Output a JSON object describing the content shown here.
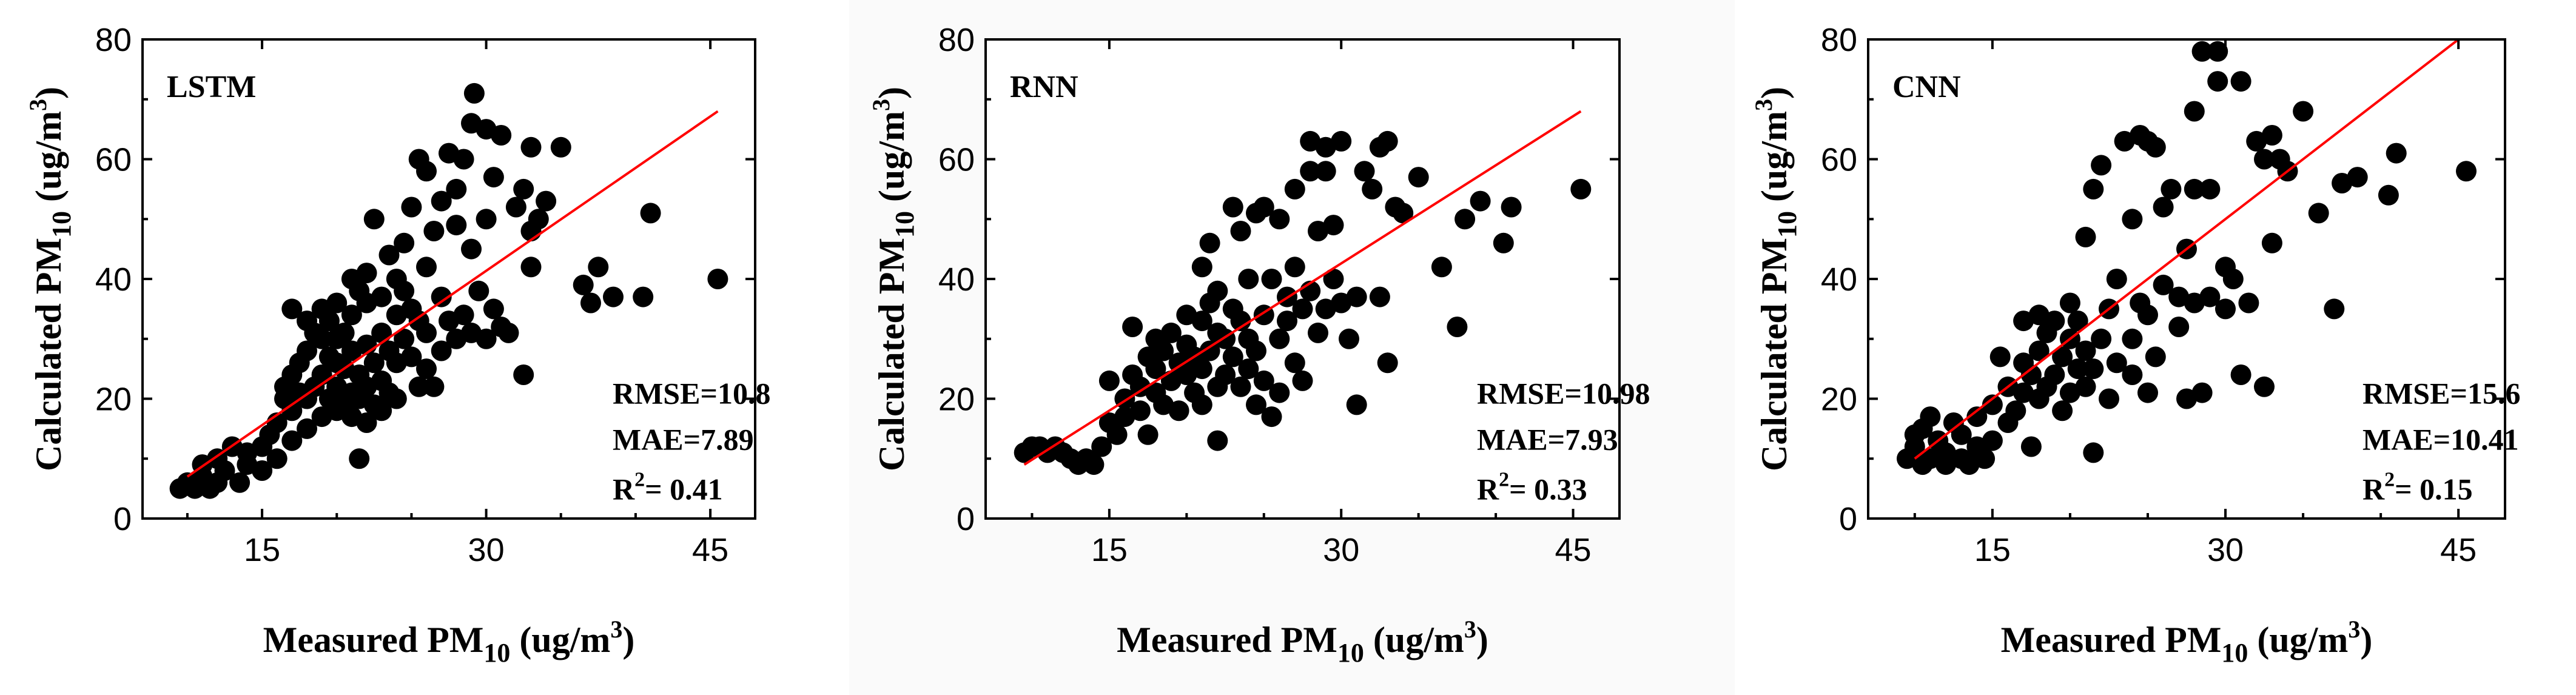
{
  "figure": {
    "xlabel_main": "Measured PM",
    "xlabel_sub": "10",
    "xlabel_unit_open": " (ug/m",
    "xlabel_unit_sup": "3",
    "xlabel_unit_close": ")",
    "ylabel_main": "Calculated PM",
    "ylabel_sub": "10",
    "ylabel_unit_open": " (ug/m",
    "ylabel_unit_sup": "3",
    "ylabel_unit_close": ")",
    "point_color": "#000000",
    "fit_color": "#ff0000"
  },
  "chart_data": [
    {
      "type": "scatter",
      "title": "LSTM",
      "xlim": [
        7,
        48
      ],
      "ylim": [
        0,
        80
      ],
      "xticks": [
        "15",
        "30",
        "45"
      ],
      "xtick_values": [
        15,
        30,
        45
      ],
      "yticks": [
        "0",
        "20",
        "40",
        "60",
        "80"
      ],
      "ytick_values": [
        0,
        20,
        40,
        60,
        80
      ],
      "fit_line": {
        "x": [
          10,
          45.5
        ],
        "y": [
          7,
          68
        ]
      },
      "stats": {
        "rmse": "RMSE=10.8",
        "mae": "MAE=7.89",
        "r2_prefix": "R",
        "r2_sup": "2",
        "r2_value": "= 0.41"
      },
      "points": [
        [
          9.5,
          5
        ],
        [
          10,
          6
        ],
        [
          10.5,
          5
        ],
        [
          11,
          7
        ],
        [
          11,
          9
        ],
        [
          11.5,
          5
        ],
        [
          12,
          6
        ],
        [
          12,
          10
        ],
        [
          12.5,
          8
        ],
        [
          13,
          12
        ],
        [
          13.5,
          6
        ],
        [
          14,
          9
        ],
        [
          14,
          11
        ],
        [
          15,
          8
        ],
        [
          15,
          12
        ],
        [
          15.5,
          14
        ],
        [
          16,
          10
        ],
        [
          16,
          16
        ],
        [
          16.5,
          20
        ],
        [
          16.5,
          22
        ],
        [
          17,
          13
        ],
        [
          17,
          18
        ],
        [
          17,
          24
        ],
        [
          17,
          35
        ],
        [
          17.5,
          26
        ],
        [
          17.5,
          21
        ],
        [
          18,
          15
        ],
        [
          18,
          20
        ],
        [
          18,
          28
        ],
        [
          18,
          33
        ],
        [
          18.5,
          22
        ],
        [
          18.5,
          31
        ],
        [
          19,
          17
        ],
        [
          19,
          24
        ],
        [
          19,
          30
        ],
        [
          19,
          35
        ],
        [
          19.5,
          20
        ],
        [
          19.5,
          27
        ],
        [
          19.5,
          33
        ],
        [
          20,
          18
        ],
        [
          20,
          22
        ],
        [
          20,
          26
        ],
        [
          20,
          30
        ],
        [
          20,
          36
        ],
        [
          20.5,
          19
        ],
        [
          20.5,
          25
        ],
        [
          20.5,
          31
        ],
        [
          21,
          17
        ],
        [
          21,
          21
        ],
        [
          21,
          28
        ],
        [
          21,
          34
        ],
        [
          21,
          40
        ],
        [
          21.5,
          10
        ],
        [
          21.5,
          20
        ],
        [
          21.5,
          24
        ],
        [
          21.5,
          38
        ],
        [
          22,
          16
        ],
        [
          22,
          22
        ],
        [
          22,
          29
        ],
        [
          22,
          36
        ],
        [
          22,
          41
        ],
        [
          22.5,
          19
        ],
        [
          22.5,
          26
        ],
        [
          22.5,
          50
        ],
        [
          23,
          18
        ],
        [
          23,
          23
        ],
        [
          23,
          31
        ],
        [
          23,
          37
        ],
        [
          23.5,
          21
        ],
        [
          23.5,
          28
        ],
        [
          23.5,
          44
        ],
        [
          24,
          20
        ],
        [
          24,
          26
        ],
        [
          24,
          34
        ],
        [
          24,
          40
        ],
        [
          24.5,
          30
        ],
        [
          24.5,
          38
        ],
        [
          24.5,
          46
        ],
        [
          25,
          27
        ],
        [
          25,
          35
        ],
        [
          25,
          52
        ],
        [
          25.5,
          22
        ],
        [
          25.5,
          33
        ],
        [
          25.5,
          60
        ],
        [
          26,
          25
        ],
        [
          26,
          31
        ],
        [
          26,
          42
        ],
        [
          26,
          58
        ],
        [
          26.5,
          22
        ],
        [
          26.5,
          48
        ],
        [
          27,
          28
        ],
        [
          27,
          37
        ],
        [
          27,
          53
        ],
        [
          27.5,
          33
        ],
        [
          27.5,
          61
        ],
        [
          28,
          30
        ],
        [
          28,
          49
        ],
        [
          28,
          55
        ],
        [
          28.5,
          34
        ],
        [
          28.5,
          60
        ],
        [
          29,
          31
        ],
        [
          29,
          45
        ],
        [
          29,
          66
        ],
        [
          29.2,
          71
        ],
        [
          29.5,
          38
        ],
        [
          30,
          30
        ],
        [
          30,
          50
        ],
        [
          30,
          65
        ],
        [
          30.5,
          35
        ],
        [
          30.5,
          57
        ],
        [
          31,
          32
        ],
        [
          31,
          64
        ],
        [
          31.5,
          31
        ],
        [
          32,
          52
        ],
        [
          32.5,
          55
        ],
        [
          32.5,
          24
        ],
        [
          33,
          42
        ],
        [
          33,
          48
        ],
        [
          33,
          62
        ],
        [
          33.5,
          50
        ],
        [
          34,
          53
        ],
        [
          35,
          62
        ],
        [
          36.5,
          39
        ],
        [
          37,
          36
        ],
        [
          37.5,
          42
        ],
        [
          38.5,
          37
        ],
        [
          40.5,
          37
        ],
        [
          41,
          51
        ],
        [
          45.5,
          40
        ]
      ]
    },
    {
      "type": "scatter",
      "title": "RNN",
      "xlim": [
        7,
        48
      ],
      "ylim": [
        0,
        80
      ],
      "xticks": [
        "15",
        "30",
        "45"
      ],
      "xtick_values": [
        15,
        30,
        45
      ],
      "yticks": [
        "0",
        "20",
        "40",
        "60",
        "80"
      ],
      "ytick_values": [
        0,
        20,
        40,
        60,
        80
      ],
      "fit_line": {
        "x": [
          9.5,
          45.5
        ],
        "y": [
          9,
          68
        ]
      },
      "stats": {
        "rmse": "RMSE=10.98",
        "mae": "MAE=7.93",
        "r2_prefix": "R",
        "r2_sup": "2",
        "r2_value": "= 0.33"
      },
      "points": [
        [
          9.5,
          11
        ],
        [
          10,
          12
        ],
        [
          10.5,
          12
        ],
        [
          11,
          11
        ],
        [
          11.5,
          12
        ],
        [
          12,
          11
        ],
        [
          12.5,
          10
        ],
        [
          13,
          9
        ],
        [
          13.5,
          10
        ],
        [
          14,
          9
        ],
        [
          14.5,
          12
        ],
        [
          15,
          16
        ],
        [
          15,
          23
        ],
        [
          15.5,
          14
        ],
        [
          16,
          20
        ],
        [
          16,
          17
        ],
        [
          16.5,
          24
        ],
        [
          16.5,
          32
        ],
        [
          17,
          18
        ],
        [
          17,
          22
        ],
        [
          17.5,
          27
        ],
        [
          17.5,
          14
        ],
        [
          18,
          21
        ],
        [
          18,
          25
        ],
        [
          18,
          30
        ],
        [
          18.5,
          19
        ],
        [
          18.5,
          28
        ],
        [
          19,
          23
        ],
        [
          19,
          31
        ],
        [
          19.5,
          18
        ],
        [
          19.5,
          26
        ],
        [
          20,
          24
        ],
        [
          20,
          29
        ],
        [
          20,
          34
        ],
        [
          20.5,
          21
        ],
        [
          20.5,
          27
        ],
        [
          21,
          19
        ],
        [
          21,
          25
        ],
        [
          21,
          33
        ],
        [
          21,
          42
        ],
        [
          21.5,
          28
        ],
        [
          21.5,
          36
        ],
        [
          21.5,
          46
        ],
        [
          22,
          13
        ],
        [
          22,
          22
        ],
        [
          22,
          31
        ],
        [
          22,
          38
        ],
        [
          22.5,
          24
        ],
        [
          22.5,
          30
        ],
        [
          23,
          27
        ],
        [
          23,
          35
        ],
        [
          23,
          52
        ],
        [
          23.5,
          22
        ],
        [
          23.5,
          33
        ],
        [
          23.5,
          48
        ],
        [
          24,
          25
        ],
        [
          24,
          30
        ],
        [
          24,
          40
        ],
        [
          24.5,
          19
        ],
        [
          24.5,
          28
        ],
        [
          24.5,
          51
        ],
        [
          25,
          23
        ],
        [
          25,
          34
        ],
        [
          25,
          52
        ],
        [
          25.5,
          17
        ],
        [
          25.5,
          40
        ],
        [
          26,
          21
        ],
        [
          26,
          30
        ],
        [
          26,
          50
        ],
        [
          26.5,
          33
        ],
        [
          26.5,
          37
        ],
        [
          27,
          26
        ],
        [
          27,
          42
        ],
        [
          27,
          55
        ],
        [
          27.5,
          35
        ],
        [
          27.5,
          23
        ],
        [
          28,
          38
        ],
        [
          28,
          58
        ],
        [
          28,
          63
        ],
        [
          28.5,
          31
        ],
        [
          28.5,
          48
        ],
        [
          29,
          35
        ],
        [
          29,
          58
        ],
        [
          29,
          62
        ],
        [
          29.5,
          40
        ],
        [
          29.5,
          49
        ],
        [
          30,
          63
        ],
        [
          30,
          36
        ],
        [
          30.5,
          30
        ],
        [
          31,
          19
        ],
        [
          31,
          37
        ],
        [
          31.5,
          58
        ],
        [
          32,
          55
        ],
        [
          32.5,
          37
        ],
        [
          32.5,
          62
        ],
        [
          33,
          26
        ],
        [
          33,
          63
        ],
        [
          33.5,
          52
        ],
        [
          34,
          51
        ],
        [
          35,
          57
        ],
        [
          36.5,
          42
        ],
        [
          37.5,
          32
        ],
        [
          38,
          50
        ],
        [
          39,
          53
        ],
        [
          40.5,
          46
        ],
        [
          41,
          52
        ],
        [
          45.5,
          55
        ]
      ]
    },
    {
      "type": "scatter",
      "title": "CNN",
      "xlim": [
        7,
        48
      ],
      "ylim": [
        0,
        80
      ],
      "xticks": [
        "15",
        "30",
        "45"
      ],
      "xtick_values": [
        15,
        30,
        45
      ],
      "yticks": [
        "0",
        "20",
        "40",
        "60",
        "80"
      ],
      "ytick_values": [
        0,
        20,
        40,
        60,
        80
      ],
      "fit_line": {
        "x": [
          10,
          45
        ],
        "y": [
          10,
          80
        ]
      },
      "stats": {
        "rmse": "RMSE=15.6",
        "mae": "MAE=10.41",
        "r2_prefix": "R",
        "r2_sup": "2",
        "r2_value": "= 0.15"
      },
      "points": [
        [
          9.5,
          10
        ],
        [
          10,
          14
        ],
        [
          10,
          12
        ],
        [
          10.5,
          9
        ],
        [
          10.5,
          15
        ],
        [
          11,
          10
        ],
        [
          11,
          17
        ],
        [
          11.5,
          13
        ],
        [
          12,
          9
        ],
        [
          12,
          11
        ],
        [
          12.5,
          16
        ],
        [
          13,
          10
        ],
        [
          13,
          14
        ],
        [
          13.5,
          9
        ],
        [
          14,
          12
        ],
        [
          14,
          17
        ],
        [
          14.5,
          10
        ],
        [
          15,
          13
        ],
        [
          15,
          19
        ],
        [
          15.5,
          27
        ],
        [
          16,
          16
        ],
        [
          16,
          22
        ],
        [
          16.5,
          18
        ],
        [
          17,
          21
        ],
        [
          17,
          26
        ],
        [
          17,
          33
        ],
        [
          17.5,
          12
        ],
        [
          17.5,
          24
        ],
        [
          18,
          20
        ],
        [
          18,
          28
        ],
        [
          18,
          34
        ],
        [
          18.5,
          22
        ],
        [
          18.5,
          31
        ],
        [
          19,
          24
        ],
        [
          19,
          33
        ],
        [
          19.5,
          18
        ],
        [
          19.5,
          27
        ],
        [
          20,
          21
        ],
        [
          20,
          30
        ],
        [
          20,
          36
        ],
        [
          20.5,
          25
        ],
        [
          20.5,
          33
        ],
        [
          21,
          22
        ],
        [
          21,
          28
        ],
        [
          21,
          47
        ],
        [
          21.5,
          11
        ],
        [
          21.5,
          25
        ],
        [
          21.5,
          55
        ],
        [
          22,
          30
        ],
        [
          22,
          59
        ],
        [
          22.5,
          20
        ],
        [
          22.5,
          35
        ],
        [
          23,
          26
        ],
        [
          23,
          40
        ],
        [
          23.5,
          63
        ],
        [
          24,
          24
        ],
        [
          24,
          30
        ],
        [
          24,
          50
        ],
        [
          24.5,
          36
        ],
        [
          24.5,
          64
        ],
        [
          25,
          21
        ],
        [
          25,
          34
        ],
        [
          25,
          63
        ],
        [
          25.5,
          27
        ],
        [
          25.5,
          62
        ],
        [
          26,
          39
        ],
        [
          26,
          52
        ],
        [
          26.5,
          55
        ],
        [
          27,
          32
        ],
        [
          27,
          37
        ],
        [
          27.5,
          45
        ],
        [
          27.5,
          20
        ],
        [
          28,
          36
        ],
        [
          28,
          55
        ],
        [
          28,
          68
        ],
        [
          28.5,
          21
        ],
        [
          28.5,
          78
        ],
        [
          29,
          37
        ],
        [
          29,
          55
        ],
        [
          29.5,
          73
        ],
        [
          29.5,
          78
        ],
        [
          30,
          35
        ],
        [
          30,
          42
        ],
        [
          30.5,
          40
        ],
        [
          31,
          24
        ],
        [
          31,
          73
        ],
        [
          31.5,
          36
        ],
        [
          32,
          63
        ],
        [
          32.5,
          22
        ],
        [
          32.5,
          60
        ],
        [
          33,
          46
        ],
        [
          33,
          64
        ],
        [
          33.5,
          60
        ],
        [
          34,
          58
        ],
        [
          35,
          68
        ],
        [
          36,
          51
        ],
        [
          37,
          35
        ],
        [
          37.5,
          56
        ],
        [
          38.5,
          57
        ],
        [
          40.5,
          54
        ],
        [
          41,
          61
        ],
        [
          45.5,
          58
        ]
      ]
    }
  ]
}
